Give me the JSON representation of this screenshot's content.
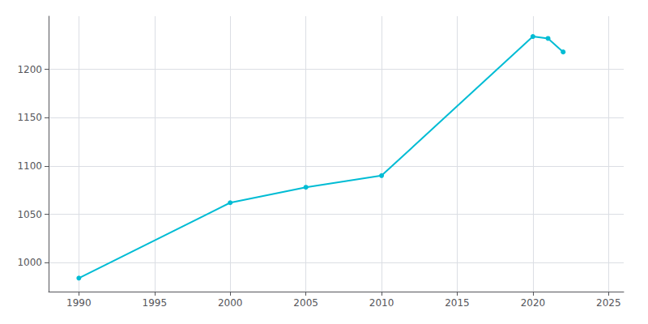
{
  "chart_data": {
    "type": "line",
    "x": [
      1990,
      2000,
      2005,
      2010,
      2020,
      2021,
      2022
    ],
    "values": [
      984,
      1062,
      1078,
      1090,
      1234,
      1232,
      1218
    ],
    "color": "#00BCD4",
    "marker": "circle",
    "xlim": [
      1988,
      2026
    ],
    "ylim": [
      970,
      1255
    ],
    "xticks": [
      1990,
      1995,
      2000,
      2005,
      2010,
      2015,
      2020,
      2025
    ],
    "yticks": [
      1000,
      1050,
      1100,
      1150,
      1200
    ],
    "grid": true
  }
}
